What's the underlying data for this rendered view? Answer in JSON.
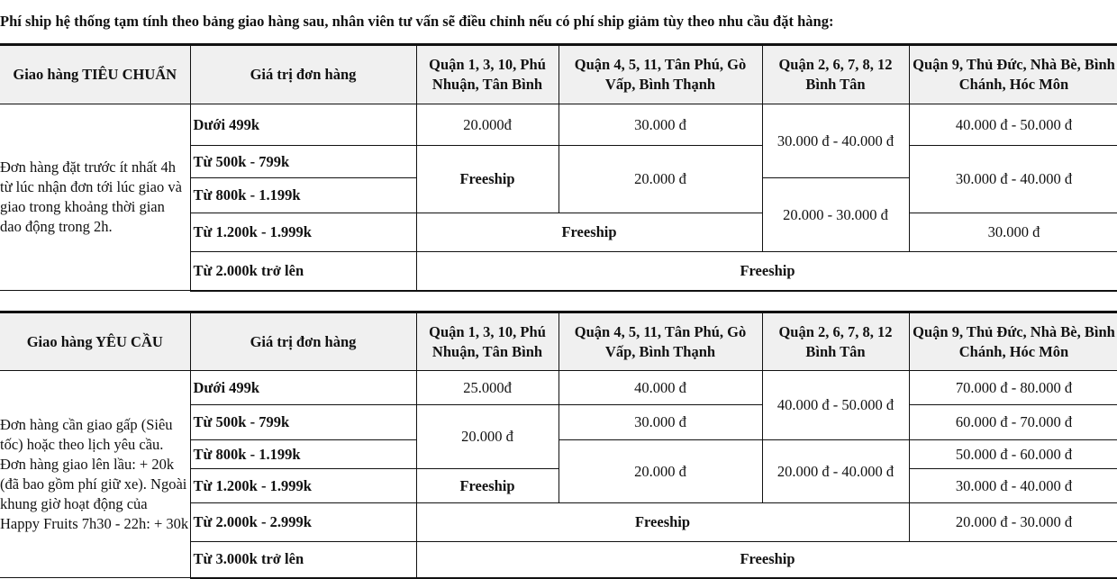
{
  "title": "Phí ship hệ thống tạm tính theo bảng giao hàng sau, nhân viên tư vấn sẽ điều chỉnh nếu có phí ship giảm tùy theo nhu cầu đặt hàng:",
  "standard": {
    "headers": [
      "Giao hàng TIÊU CHUẨN",
      "Giá trị đơn hàng",
      "Quận 1, 3, 10, Phú Nhuận, Tân Bình",
      "Quận 4, 5, 11, Tân Phú, Gò Vấp, Bình Thạnh",
      "Quận 2, 6, 7, 8, 12 Bình Tân",
      "Quận 9, Thủ Đức, Nhà Bè, Bình Chánh, Hóc Môn"
    ],
    "description": "Đơn hàng đặt trước ít nhất 4h từ lúc nhận đơn tới lúc giao và giao trong khoảng thời gian dao động trong 2h.",
    "order_values": [
      "Dưới 499k",
      "Từ 500k - 799k",
      "Từ 800k - 1.199k",
      "Từ 1.200k - 1.999k",
      "Từ 2.000k trở lên"
    ],
    "cells": {
      "r1_q1": "20.000đ",
      "r1_q4": "30.000 đ",
      "r12_q2": "30.000 đ - 40.000 đ",
      "r1_q9": "40.000 đ - 50.000 đ",
      "r23_q1": "Freeship",
      "r23_q4": "20.000 đ",
      "r23_q9": "30.000 đ - 40.000 đ",
      "r34_q2": "20.000 - 30.000 đ",
      "r4_q1q4": "Freeship",
      "r4_q9": "30.000 đ",
      "r5_all": "Freeship"
    }
  },
  "on_demand": {
    "headers": [
      "Giao hàng YÊU CẦU",
      "Giá trị đơn hàng",
      "Quận 1, 3, 10, Phú Nhuận, Tân Bình",
      "Quận 4, 5, 11, Tân Phú, Gò Vấp, Bình Thạnh",
      "Quận 2, 6, 7, 8, 12 Bình Tân",
      "Quận 9, Thủ Đức, Nhà Bè, Bình Chánh, Hóc Môn"
    ],
    "description_lines": [
      "Đơn hàng cần giao gấp (Siêu tốc) hoặc theo lịch yêu cầu.",
      "Đơn hàng giao lên lầu: + 20k (đã bao gồm phí giữ xe). Ngoài khung giờ hoạt động của Happy Fruits 7h30 - 22h: + 30k"
    ],
    "order_values": [
      "Dưới 499k",
      "Từ 500k - 799k",
      "Từ 800k - 1.199k",
      "Từ 1.200k - 1.999k",
      "Từ 2.000k - 2.999k",
      "Từ 3.000k trở lên"
    ],
    "cells": {
      "r1_q1": "25.000đ",
      "r1_q4": "40.000 đ",
      "r12_q2": "40.000 đ - 50.000 đ",
      "r1_q9": "70.000 đ - 80.000 đ",
      "r23_q1": "20.000 đ",
      "r2_q4": "30.000 đ",
      "r2_q9": "60.000 đ - 70.000 đ",
      "r34_q4": "20.000 đ",
      "r34_q2": "20.000 đ - 40.000 đ",
      "r3_q9": "50.000 đ - 60.000 đ",
      "r4_q1": "Freeship",
      "r4_q9": "30.000 đ - 40.000 đ",
      "r5_q1q2": "Freeship",
      "r5_q9": "20.000 đ - 30.000 đ",
      "r6_all": "Freeship"
    }
  }
}
